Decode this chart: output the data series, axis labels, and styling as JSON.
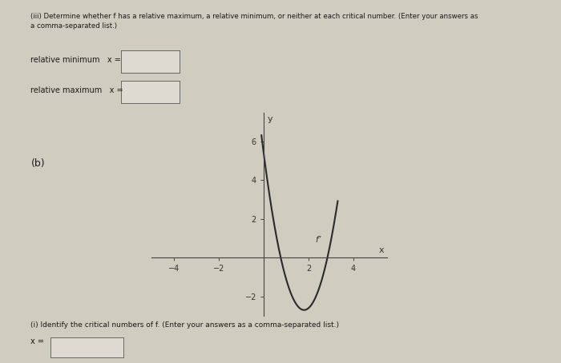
{
  "background_color": "#d0ccbf",
  "title_text": "(iii) Determine whether f has a relative maximum, a relative minimum, or neither at each critical number. (Enter your answers as\na comma-separated list.)",
  "rel_min_label": "relative minimum",
  "rel_max_label": "relative maximum",
  "x_eq": "x =",
  "part_b_label": "(b)",
  "ylabel": "y",
  "xlabel": "x",
  "curve_label": "f’",
  "xlim": [
    -5,
    5.5
  ],
  "ylim": [
    -3,
    7.5
  ],
  "xticks": [
    -4,
    -2,
    2,
    4
  ],
  "yticks": [
    -2,
    2,
    4,
    6
  ],
  "bottom_text": "(i) Identify the critical numbers of f. (Enter your answers as a comma-separated list.)",
  "bottom_x_label": "x =",
  "curve_color": "#2a2a2a",
  "curve_linewidth": 1.5,
  "curve_a": 2.5,
  "curve_b": 1.8,
  "curve_c": -2.7,
  "curve_xstart": -0.1,
  "curve_xend": 3.3
}
